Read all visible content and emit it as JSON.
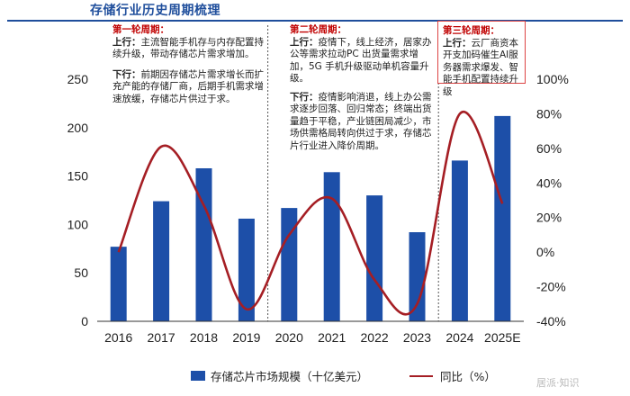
{
  "page_title": "存储行业历史周期梳理",
  "cycles": [
    {
      "heading": "第一轮周期：",
      "paragraphs": [
        {
          "label": "上行：",
          "text": "主流智能手机存与内存配置持续升级，带动存储芯片需求增加。"
        },
        {
          "label": "下行：",
          "text": "前期因存储芯片需求增长而扩充产能的存储厂商，后期手机需求增速放缓，存储芯片供过于求。"
        }
      ]
    },
    {
      "heading": "第二轮周期：",
      "paragraphs": [
        {
          "label": "上行：",
          "text": "疫情下，线上经济，居家办公等需求拉动PC 出货量需求增加，5G 手机升级驱动单机容量升级。"
        },
        {
          "label": "下行：",
          "text": "疫情影响消退，线上办公需求逐步回落、回归常态；终端出货量趋于平稳，产业链困局减少，市场供需格局转向供过于求，存储芯片行业进入降价周期。"
        }
      ]
    },
    {
      "heading": "第三轮周期：",
      "paragraphs": [
        {
          "label": "上行：",
          "text": "云厂商资本开支加码催生AI服务器需求爆发、智能手机配置持续升级"
        }
      ]
    }
  ],
  "legend": {
    "bar_label": "存储芯片市场规模（十亿美元）",
    "line_label": "同比（%）"
  },
  "watermark": "居派·知识",
  "chart_data": {
    "type": "bar+line",
    "categories": [
      "2016",
      "2017",
      "2018",
      "2019",
      "2020",
      "2021",
      "2022",
      "2023",
      "2024",
      "2025E"
    ],
    "series": [
      {
        "name": "存储芯片市场规模（十亿美元）",
        "type": "bar",
        "axis": "left",
        "values": [
          77,
          124,
          158,
          106,
          117,
          154,
          130,
          92,
          166,
          212
        ]
      },
      {
        "name": "同比（%）",
        "type": "line",
        "axis": "right",
        "values": [
          0,
          61,
          27,
          -33,
          10,
          31,
          -16,
          -30,
          80,
          28
        ]
      }
    ],
    "left_axis": {
      "min": 0,
      "max": 250,
      "ticks": [
        0,
        50,
        100,
        150,
        200,
        250
      ]
    },
    "right_axis": {
      "min": -40,
      "max": 100,
      "ticks": [
        "-40%",
        "-20%",
        "0%",
        "20%",
        "40%",
        "60%",
        "80%",
        "100%"
      ]
    },
    "cycle_dividers_after": [
      "2019",
      "2023"
    ],
    "grid": false,
    "legend_position": "bottom",
    "colors": {
      "bar": "#1d4fa8",
      "line": "#a51e24",
      "divider": "#555555"
    }
  }
}
